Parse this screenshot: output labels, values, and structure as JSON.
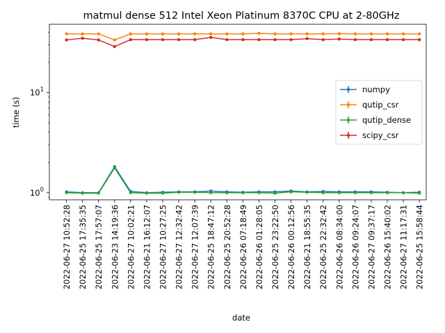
{
  "chart_data": {
    "type": "line",
    "title": "matmul dense 512 Intel Xeon Platinum 8370C CPU at 2-80GHz",
    "xlabel": "date",
    "ylabel": "time (s)",
    "y_scale": "log",
    "ylim": [
      0.85,
      48
    ],
    "y_ticks": [
      {
        "value": 1,
        "base": "10",
        "exp": "0"
      },
      {
        "value": 10,
        "base": "10",
        "exp": "1"
      }
    ],
    "legend_placement": "center-right",
    "grid": false,
    "categories": [
      "2022-06-27 10:52:28",
      "2022-06-25 17:35:35",
      "2022-06-25 17:57:07",
      "2022-06-23 14:19:36",
      "2022-06-27 10:02:21",
      "2022-06-21 16:12:07",
      "2022-06-27 10:27:25",
      "2022-06-27 12:32:42",
      "2022-06-27 12:07:39",
      "2022-06-25 18:47:12",
      "2022-06-25 20:52:28",
      "2022-06-26 07:18:49",
      "2022-06-26 01:28:05",
      "2022-06-25 23:22:50",
      "2022-06-26 00:12:56",
      "2022-06-21 18:55:35",
      "2022-06-25 22:32:42",
      "2022-06-26 08:34:00",
      "2022-06-26 09:24:07",
      "2022-06-27 09:37:17",
      "2022-06-26 15:40:02",
      "2022-06-27 11:17:31",
      "2022-06-25 15:58:44"
    ],
    "series": [
      {
        "name": "numpy",
        "color": "#1f77b4",
        "values": [
          1.02,
          1.0,
          1.0,
          1.82,
          1.03,
          1.0,
          1.01,
          1.02,
          1.02,
          1.04,
          1.02,
          1.01,
          1.02,
          1.02,
          1.04,
          1.02,
          1.03,
          1.02,
          1.02,
          1.02,
          1.01,
          1.0,
          1.01
        ]
      },
      {
        "name": "qutip_csr",
        "color": "#ff7f0e",
        "values": [
          38.5,
          38.5,
          38.5,
          33.5,
          38.5,
          38.5,
          38.5,
          38.5,
          38.5,
          38.5,
          38.5,
          38.5,
          39.0,
          38.5,
          38.5,
          38.5,
          38.5,
          38.7,
          38.5,
          38.5,
          38.5,
          38.5,
          38.5
        ]
      },
      {
        "name": "qutip_dense",
        "color": "#2ca02c",
        "values": [
          1.0,
          0.99,
          0.99,
          1.77,
          1.0,
          0.99,
          0.99,
          1.01,
          1.01,
          1.0,
          1.0,
          1.0,
          1.0,
          0.99,
          1.02,
          1.01,
          1.0,
          1.0,
          1.0,
          1.0,
          1.0,
          1.0,
          0.99
        ]
      },
      {
        "name": "scipy_csr",
        "color": "#d62728",
        "values": [
          33.5,
          34.8,
          33.5,
          28.8,
          33.7,
          33.7,
          33.7,
          33.7,
          33.7,
          35.5,
          33.7,
          33.7,
          33.7,
          33.7,
          33.7,
          34.5,
          33.7,
          34.2,
          33.7,
          33.7,
          33.7,
          33.7,
          33.7
        ]
      }
    ]
  }
}
